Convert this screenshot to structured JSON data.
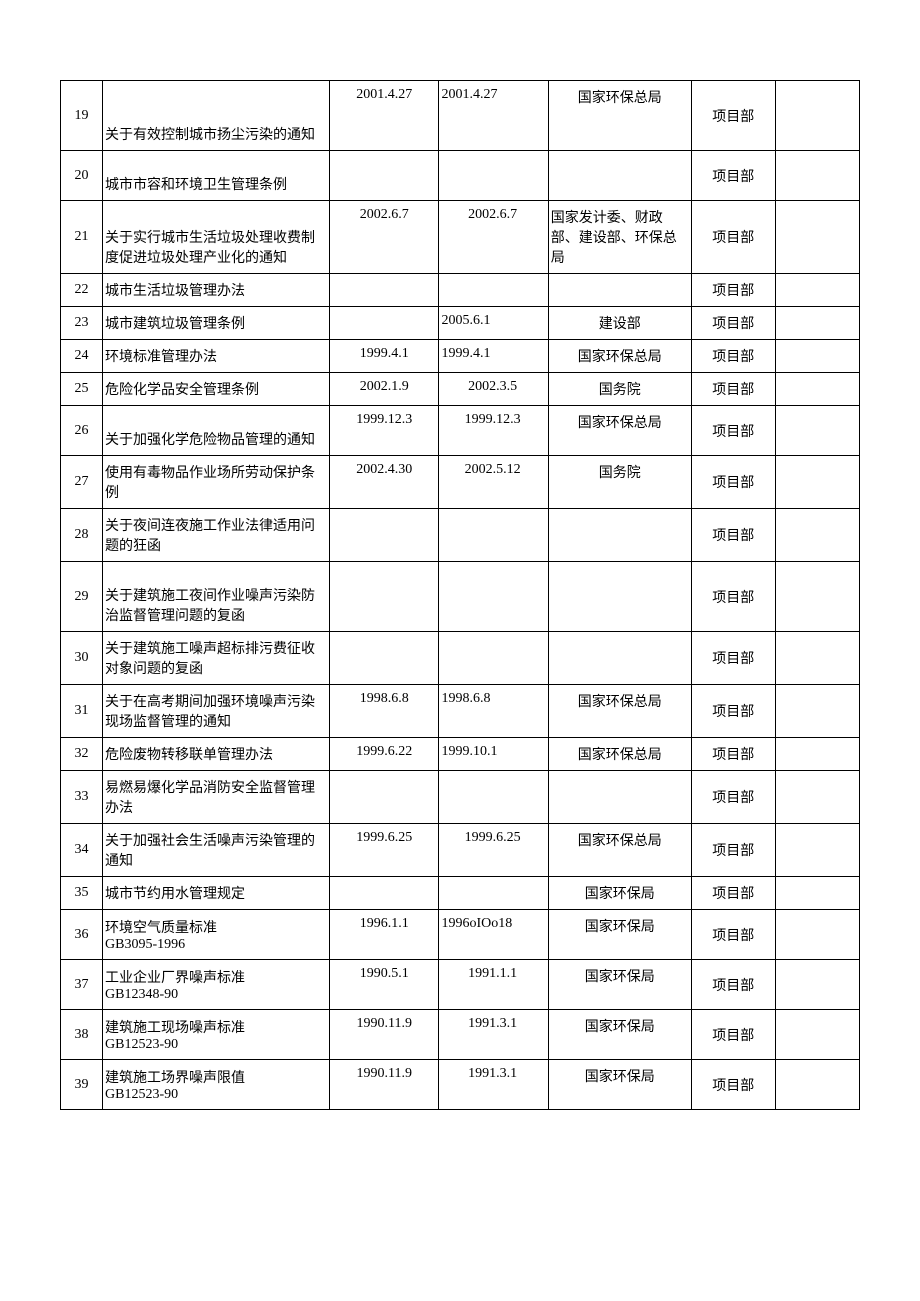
{
  "table": {
    "colors": {
      "border": "#000000",
      "background": "#ffffff",
      "text": "#000000"
    },
    "font": {
      "family": "SimSun",
      "size": 14
    },
    "rows": [
      {
        "num": "19",
        "title": "关于有效控制城市扬尘污染的通知",
        "date1": "2001.4.27",
        "date2": "2001.4.27",
        "agency": "国家环保总局",
        "dept": "项目部",
        "height": "tall",
        "date2align": "left",
        "agencyalign": "center"
      },
      {
        "num": "20",
        "title": "城市市容和环境卫生管理条例",
        "date1": "",
        "date2": "",
        "agency": "",
        "dept": "项目部",
        "height": "med",
        "date2align": "left",
        "agencyalign": "center"
      },
      {
        "num": "21",
        "title": "关于实行城市生活垃圾处理收费制度促进垃圾处理产业化的通知",
        "date1": "2002.6.7",
        "date2": "2002.6.7",
        "agency": "国家发计委、财政部、建设部、环保总局",
        "dept": "项目部",
        "height": "tall",
        "date2align": "center",
        "agencyalign": "left"
      },
      {
        "num": "22",
        "title": "城市生活垃圾管理办法",
        "date1": "",
        "date2": "",
        "agency": "",
        "dept": "项目部",
        "height": "short",
        "date2align": "left",
        "agencyalign": "center"
      },
      {
        "num": "23",
        "title": "城市建筑垃圾管理条例",
        "date1": "",
        "date2": "2005.6.1",
        "agency": "建设部",
        "dept": "项目部",
        "height": "short",
        "date2align": "left",
        "agencyalign": "center"
      },
      {
        "num": "24",
        "title": "环境标准管理办法",
        "date1": "1999.4.1",
        "date2": "1999.4.1",
        "agency": "国家环保总局",
        "dept": "项目部",
        "height": "short",
        "date2align": "left",
        "agencyalign": "center"
      },
      {
        "num": "25",
        "title": "危险化学品安全管理条例",
        "date1": "2002.1.9",
        "date2": "2002.3.5",
        "agency": "国务院",
        "dept": "项目部",
        "height": "short",
        "date2align": "center",
        "agencyalign": "center"
      },
      {
        "num": "26",
        "title": "关于加强化学危险物品管理的通知",
        "date1": "1999.12.3",
        "date2": "1999.12.3",
        "agency": "国家环保总局",
        "dept": "项目部",
        "height": "med",
        "date2align": "center",
        "agencyalign": "center"
      },
      {
        "num": "27",
        "title": "使用有毒物品作业场所劳动保护条例",
        "date1": "2002.4.30",
        "date2": "2002.5.12",
        "agency": "国务院",
        "dept": "项目部",
        "height": "med",
        "date2align": "center",
        "agencyalign": "center"
      },
      {
        "num": "28",
        "title": "关于夜间连夜施工作业法律适用问题的狂函",
        "date1": "",
        "date2": "",
        "agency": "",
        "dept": "项目部",
        "height": "med",
        "date2align": "left",
        "agencyalign": "center"
      },
      {
        "num": "29",
        "title": "关于建筑施工夜间作业噪声污染防治监督管理问题的复函",
        "date1": "",
        "date2": "",
        "agency": "",
        "dept": "项目部",
        "height": "tall",
        "date2align": "left",
        "agencyalign": "center"
      },
      {
        "num": "30",
        "title": "关于建筑施工噪声超标排污费征收对象问题的复函",
        "date1": "",
        "date2": "",
        "agency": "",
        "dept": "项目部",
        "height": "med",
        "date2align": "left",
        "agencyalign": "center"
      },
      {
        "num": "31",
        "title": "关于在高考期间加强环境噪声污染现场监督管理的通知",
        "date1": "1998.6.8",
        "date2": "1998.6.8",
        "agency": "国家环保总局",
        "dept": "项目部",
        "height": "med",
        "date2align": "left",
        "agencyalign": "center"
      },
      {
        "num": "32",
        "title": "危险废物转移联单管理办法",
        "date1": "1999.6.22",
        "date2": "1999.10.1",
        "agency": "国家环保总局",
        "dept": "项目部",
        "height": "short",
        "date2align": "left",
        "agencyalign": "center"
      },
      {
        "num": "33",
        "title": "易燃易爆化学品消防安全监督管理办法",
        "date1": "",
        "date2": "",
        "agency": "",
        "dept": "项目部",
        "height": "med",
        "date2align": "left",
        "agencyalign": "center"
      },
      {
        "num": "34",
        "title": "关于加强社会生活噪声污染管理的通知",
        "date1": "1999.6.25",
        "date2": "1999.6.25",
        "agency": "国家环保总局",
        "dept": "项目部",
        "height": "med",
        "date2align": "center",
        "agencyalign": "center"
      },
      {
        "num": "35",
        "title": "城市节约用水管理规定",
        "date1": "",
        "date2": "",
        "agency": "国家环保局",
        "dept": "项目部",
        "height": "short",
        "date2align": "left",
        "agencyalign": "center"
      },
      {
        "num": "36",
        "title": "环境空气质量标准\nGB3095-1996",
        "date1": "1996.1.1",
        "date2": "1996oIOo18",
        "agency": "国家环保局",
        "dept": "项目部",
        "height": "med",
        "date2align": "left",
        "agencyalign": "center"
      },
      {
        "num": "37",
        "title": "工业企业厂界噪声标准\nGB12348-90",
        "date1": "1990.5.1",
        "date2": "1991.1.1",
        "agency": "国家环保局",
        "dept": "项目部",
        "height": "med",
        "date2align": "center",
        "agencyalign": "center"
      },
      {
        "num": "38",
        "title": "建筑施工现场噪声标准\nGB12523-90",
        "date1": "1990.11.9",
        "date2": "1991.3.1",
        "agency": "国家环保局",
        "dept": "项目部",
        "height": "med",
        "date2align": "center",
        "agencyalign": "center"
      },
      {
        "num": "39",
        "title": "建筑施工场界噪声限值\nGB12523-90",
        "date1": "1990.11.9",
        "date2": "1991.3.1",
        "agency": "国家环保局",
        "dept": "项目部",
        "height": "med",
        "date2align": "center",
        "agencyalign": "center"
      }
    ]
  }
}
